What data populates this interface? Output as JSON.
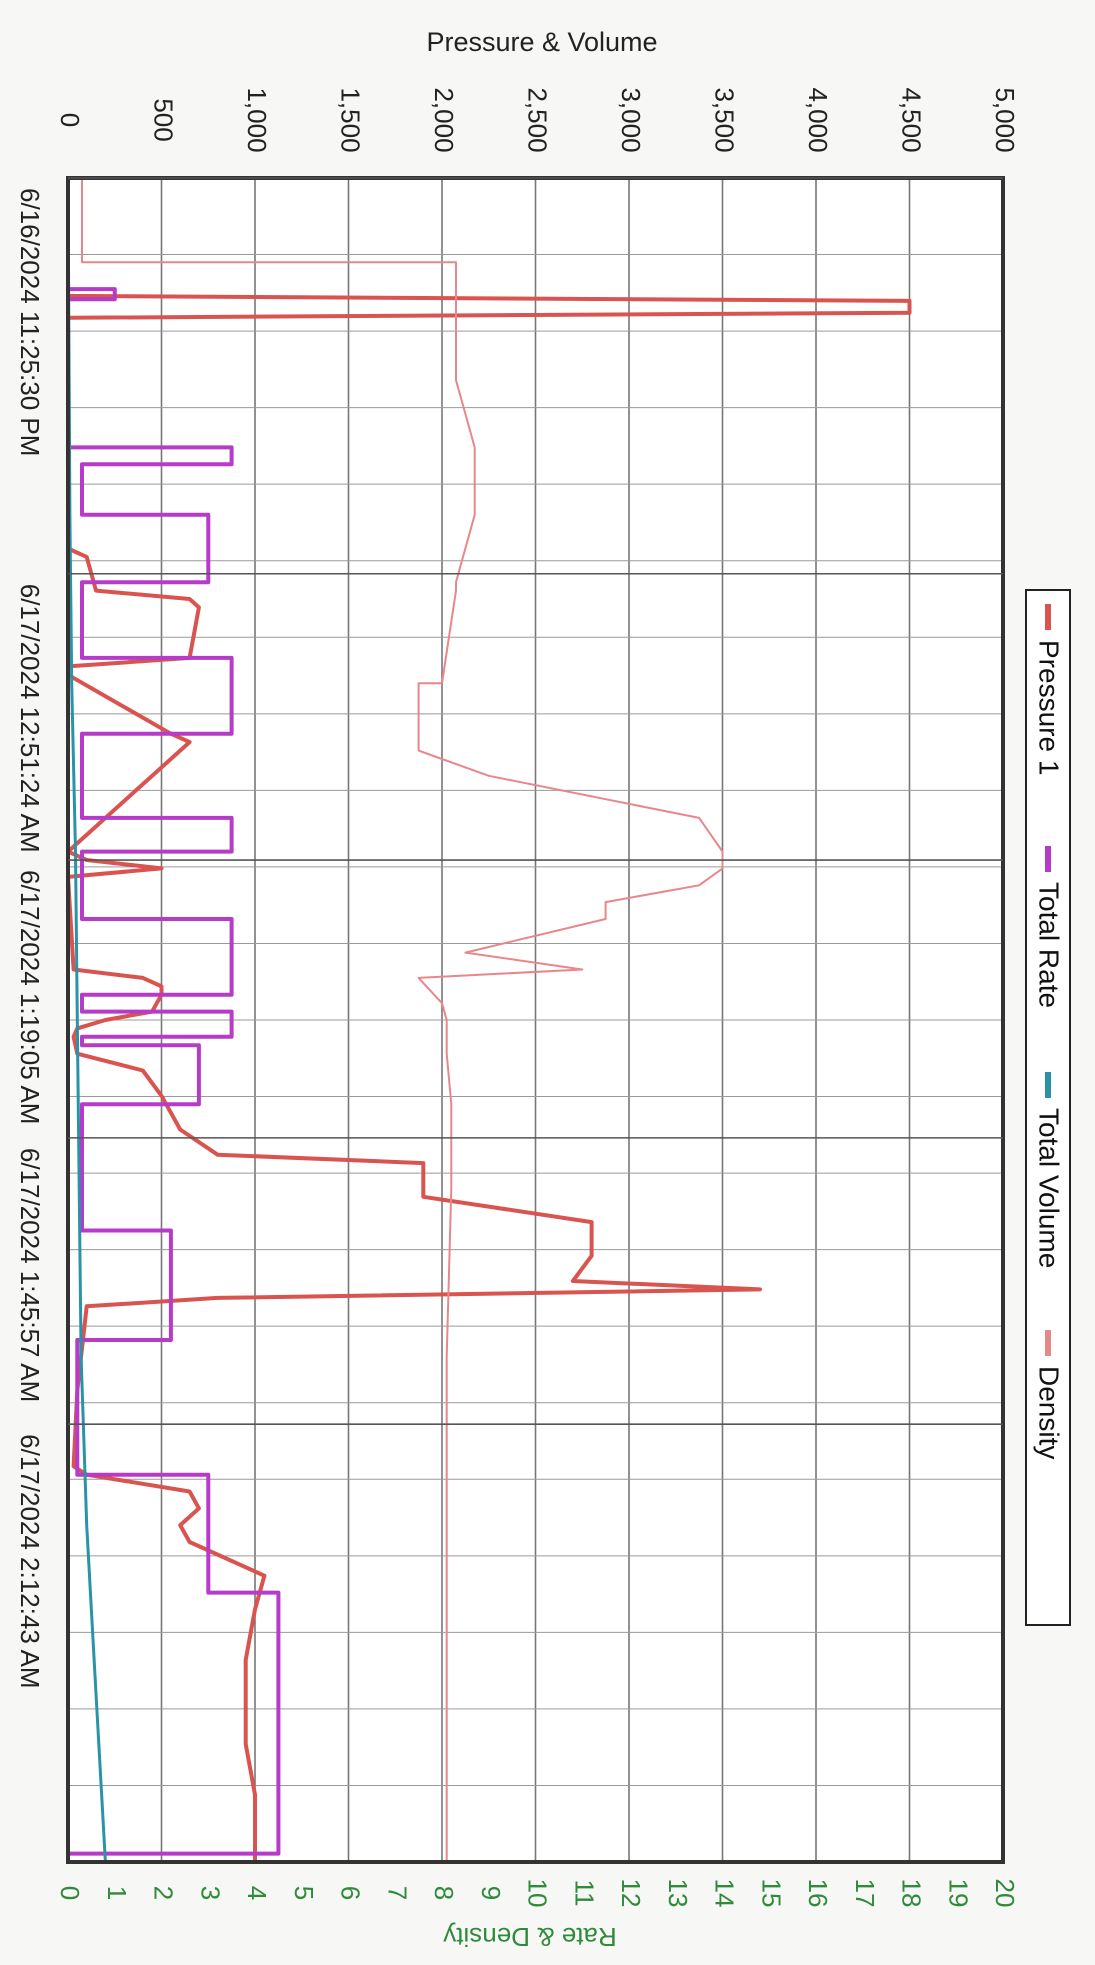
{
  "chart_data": {
    "type": "line",
    "orientation": "rotated-90-clockwise",
    "title": "",
    "time_axis": {
      "tick_labels": [
        "6/16/2024 11:25:30 PM",
        "6/17/2024 12:51:24 AM",
        "6/17/2024 1:19:05 AM",
        "6/17/2024 1:45:57 AM",
        "6/17/2024 2:12:43 AM"
      ]
    },
    "primary_axis": {
      "label": "Pressure & Volume",
      "range": [
        0,
        5000
      ],
      "tick_labels": [
        "0",
        "500",
        "1,000",
        "1,500",
        "2,000",
        "2,500",
        "3,000",
        "3,500",
        "4,000",
        "4,500",
        "5,000"
      ],
      "gridlines": true
    },
    "secondary_axis": {
      "label": "Rate & Density",
      "range": [
        0,
        20
      ],
      "tick_labels": [
        "0",
        "1",
        "2",
        "3",
        "4",
        "5",
        "6",
        "7",
        "8",
        "9",
        "10",
        "11",
        "12",
        "13",
        "14",
        "15",
        "16",
        "17",
        "18",
        "19",
        "20"
      ]
    },
    "legend": {
      "position": "right",
      "entries": [
        "Pressure 1",
        "Total Rate",
        "Total Volume",
        "Density"
      ]
    },
    "colors": {
      "pressure": "#d9534f",
      "rate": "#b63bc8",
      "volume": "#2a93a8",
      "density": "#e8878a",
      "grid": "#777777",
      "primary_text": "#222222",
      "secondary_text": "#2f8a3a"
    },
    "series": [
      {
        "name": "Pressure 1",
        "axis": "primary",
        "t": [
          0,
          0.07,
          0.073,
          0.08,
          0.083,
          0.22,
          0.225,
          0.245,
          0.25,
          0.255,
          0.285,
          0.29,
          0.295,
          0.33,
          0.335,
          0.4,
          0.405,
          0.41,
          0.415,
          0.47,
          0.475,
          0.48,
          0.485,
          0.495,
          0.5,
          0.505,
          0.51,
          0.52,
          0.53,
          0.545,
          0.565,
          0.58,
          0.585,
          0.59,
          0.59,
          0.605,
          0.62,
          0.64,
          0.655,
          0.66,
          0.66,
          0.665,
          0.67,
          0.72,
          0.765,
          0.77,
          0.78,
          0.79,
          0.8,
          0.81,
          0.83,
          0.85,
          0.88,
          0.93,
          0.96,
          1.0
        ],
        "values": [
          0,
          0,
          4500,
          4500,
          0,
          0,
          100,
          150,
          650,
          700,
          650,
          0,
          0,
          550,
          650,
          0,
          100,
          500,
          0,
          30,
          400,
          500,
          500,
          450,
          200,
          50,
          30,
          50,
          400,
          500,
          600,
          800,
          1900,
          1900,
          1900,
          1900,
          2800,
          2800,
          2700,
          3700,
          3700,
          800,
          100,
          50,
          30,
          100,
          650,
          700,
          600,
          650,
          1050,
          1000,
          950,
          950,
          1000,
          1000
        ]
      },
      {
        "name": "Total Rate",
        "axis": "secondary",
        "t": [
          0,
          0.066,
          0.066,
          0.072,
          0.072,
          0.16,
          0.16,
          0.17,
          0.17,
          0.2,
          0.2,
          0.24,
          0.24,
          0.285,
          0.285,
          0.33,
          0.33,
          0.38,
          0.38,
          0.4,
          0.4,
          0.44,
          0.44,
          0.485,
          0.485,
          0.495,
          0.495,
          0.51,
          0.51,
          0.515,
          0.515,
          0.55,
          0.55,
          0.625,
          0.625,
          0.69,
          0.69,
          0.77,
          0.77,
          0.84,
          0.84,
          0.995,
          0.995
        ],
        "values": [
          0,
          0,
          1,
          1,
          0,
          0,
          3.5,
          3.5,
          0.3,
          0.3,
          3,
          3,
          0.3,
          0.3,
          3.5,
          3.5,
          0.3,
          0.3,
          3.5,
          3.5,
          0.3,
          0.3,
          3.5,
          3.5,
          0.3,
          0.3,
          3.5,
          3.5,
          0.3,
          0.3,
          2.8,
          2.8,
          0.3,
          0.3,
          2.2,
          2.2,
          0.2,
          0.2,
          3,
          3,
          4.5,
          4.5,
          0
        ]
      },
      {
        "name": "Total Volume",
        "axis": "primary",
        "t": [
          0,
          0.2,
          0.3,
          0.4,
          0.5,
          0.6,
          0.7,
          0.8,
          0.9,
          1.0
        ],
        "values": [
          0,
          10,
          20,
          40,
          50,
          60,
          70,
          100,
          150,
          200
        ]
      },
      {
        "name": "Density",
        "axis": "secondary",
        "t": [
          0,
          0.05,
          0.05,
          0.1,
          0.12,
          0.16,
          0.2,
          0.24,
          0.245,
          0.3,
          0.3,
          0.34,
          0.345,
          0.355,
          0.38,
          0.4,
          0.41,
          0.42,
          0.43,
          0.44,
          0.46,
          0.47,
          0.475,
          0.49,
          0.5,
          0.52,
          0.55,
          0.6,
          0.7,
          0.8,
          0.9,
          1.0
        ],
        "values": [
          0.3,
          0.3,
          8.3,
          8.3,
          8.3,
          8.7,
          8.7,
          8.3,
          8.3,
          8.0,
          7.5,
          7.5,
          8.0,
          9.0,
          13.5,
          14.0,
          14.0,
          13.5,
          11.5,
          11.5,
          8.5,
          11.0,
          7.5,
          8.0,
          8.1,
          8.1,
          8.2,
          8.2,
          8.1,
          8.1,
          8.1,
          8.1
        ]
      }
    ]
  }
}
